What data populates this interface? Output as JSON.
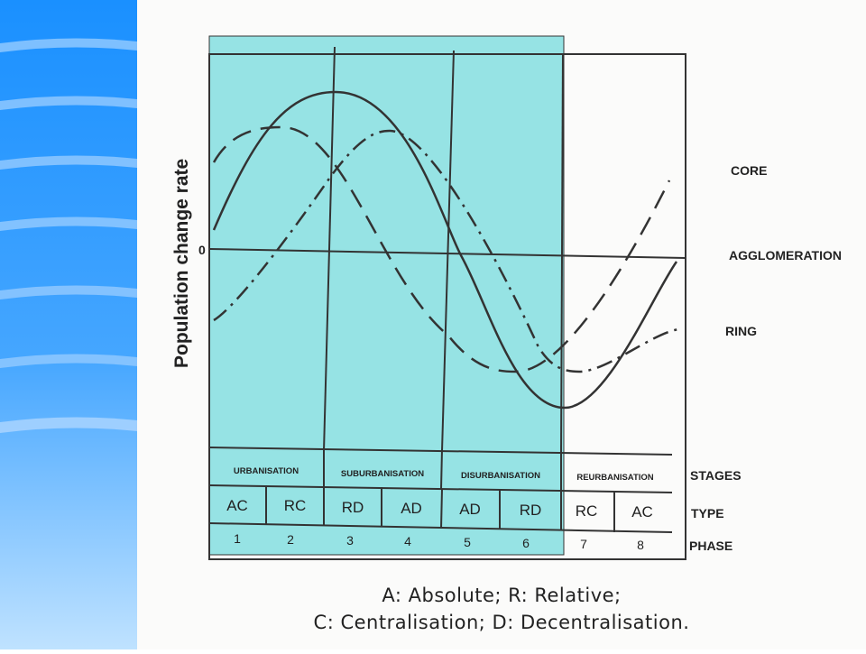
{
  "diagram": {
    "y_axis_label": "Population change rate",
    "zero_label": "0",
    "curve_labels": {
      "core": "CORE",
      "agglomeration": "AGGLOMERATION",
      "ring": "RING"
    },
    "row_labels": {
      "stages": "STAGES",
      "type": "TYPE",
      "phase": "PHASE"
    },
    "stages": [
      "URBANISATION",
      "SUBURBANISATION",
      "DISURBANISATION",
      "REURBANISATION"
    ],
    "types": [
      "AC",
      "RC",
      "RD",
      "AD",
      "AD",
      "RD",
      "RC",
      "AC"
    ],
    "phases": [
      "1",
      "2",
      "3",
      "4",
      "5",
      "6",
      "7",
      "8"
    ],
    "highlight_color": "#96e3e4",
    "line_color": "#333333"
  },
  "caption": {
    "line1": "A: Absolute; R: Relative;",
    "line2": "C: Centralisation; D: Decentralisation."
  }
}
